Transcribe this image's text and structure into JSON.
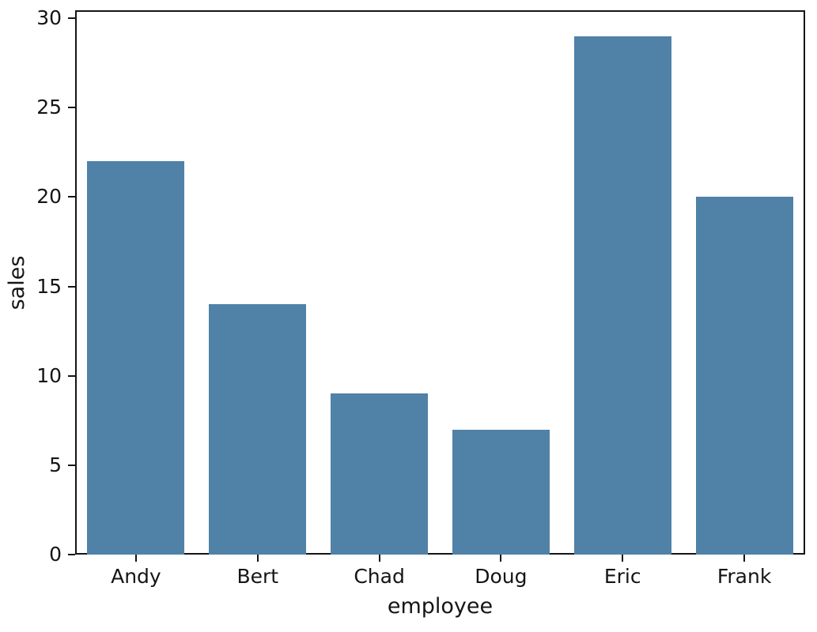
{
  "chart_data": {
    "type": "bar",
    "title": "",
    "categories": [
      "Andy",
      "Bert",
      "Chad",
      "Doug",
      "Eric",
      "Frank"
    ],
    "values": [
      22,
      14,
      9,
      7,
      29,
      20
    ],
    "xlabel": "employee",
    "ylabel": "sales",
    "ylim": [
      0,
      30.45
    ],
    "yticks": [
      0,
      5,
      10,
      15,
      20,
      25,
      30
    ],
    "bar_color": "#5081a7",
    "text_color": "#151515",
    "background_color": "#ffffff",
    "grid": "off",
    "legend": "none"
  }
}
